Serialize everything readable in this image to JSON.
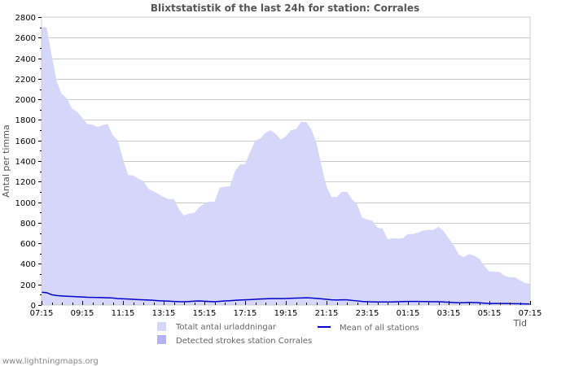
{
  "chart_data": {
    "type": "area",
    "title": "Blixtstatistik of the last 24h for station: Corrales",
    "xlabel": "Tid",
    "ylabel": "Antal per timma",
    "ylim": [
      0,
      2800
    ],
    "yticks": [
      0,
      200,
      400,
      600,
      800,
      1000,
      1200,
      1400,
      1600,
      1800,
      2000,
      2200,
      2400,
      2600,
      2800
    ],
    "xtick_labels": [
      "07:15",
      "09:15",
      "11:15",
      "13:15",
      "15:15",
      "17:15",
      "19:15",
      "21:15",
      "23:15",
      "01:15",
      "03:15",
      "05:15",
      "07:15"
    ],
    "grid": true,
    "legend_position": "bottom",
    "x_interval_minutes": 15,
    "series": [
      {
        "name": "Totalt antal urladdningar",
        "kind": "area",
        "color": "#d6d6fb",
        "values": [
          2700,
          2700,
          2430,
          2170,
          2050,
          2010,
          1910,
          1880,
          1820,
          1760,
          1755,
          1730,
          1750,
          1760,
          1650,
          1600,
          1420,
          1265,
          1260,
          1230,
          1205,
          1130,
          1105,
          1080,
          1050,
          1030,
          1030,
          930,
          870,
          890,
          895,
          950,
          990,
          1005,
          1005,
          1140,
          1150,
          1155,
          1300,
          1365,
          1370,
          1490,
          1600,
          1620,
          1675,
          1700,
          1665,
          1610,
          1640,
          1700,
          1710,
          1780,
          1780,
          1710,
          1580,
          1360,
          1150,
          1050,
          1050,
          1100,
          1100,
          1030,
          980,
          850,
          830,
          820,
          750,
          745,
          640,
          650,
          645,
          650,
          690,
          690,
          705,
          725,
          730,
          730,
          760,
          720,
          650,
          580,
          490,
          465,
          495,
          480,
          450,
          380,
          325,
          325,
          320,
          285,
          270,
          270,
          240,
          215,
          205
        ]
      },
      {
        "name": "Detected strokes station Corrales",
        "kind": "area",
        "color": "#b4b4f7",
        "values": [
          0,
          0,
          0,
          0,
          0,
          0,
          0,
          0,
          0,
          0,
          0,
          0,
          0,
          0,
          0,
          0,
          0,
          0,
          0,
          0,
          0,
          0,
          0,
          0,
          0,
          0,
          0,
          0,
          0,
          0,
          0,
          0,
          0,
          0,
          0,
          0,
          0,
          0,
          0,
          0,
          0,
          0,
          0,
          0,
          0,
          0,
          0,
          0,
          0,
          0,
          0,
          0,
          0,
          0,
          0,
          0,
          0,
          0,
          0,
          0,
          0,
          0,
          0,
          0,
          0,
          0,
          0,
          0,
          0,
          0,
          0,
          0,
          0,
          0,
          0,
          0,
          0,
          0,
          0,
          0,
          0,
          0,
          0,
          0,
          0,
          0,
          0,
          0,
          0,
          0,
          0,
          0,
          0,
          0,
          0,
          0,
          0
        ]
      },
      {
        "name": "Mean of all stations",
        "kind": "line",
        "color": "#0000cc",
        "values": [
          125,
          120,
          100,
          92,
          88,
          85,
          83,
          80,
          78,
          75,
          74,
          73,
          72,
          70,
          68,
          62,
          60,
          58,
          55,
          52,
          50,
          48,
          45,
          42,
          40,
          38,
          35,
          33,
          32,
          34,
          38,
          40,
          37,
          34,
          32,
          36,
          40,
          42,
          45,
          48,
          50,
          52,
          55,
          58,
          60,
          62,
          62,
          62,
          63,
          65,
          67,
          68,
          70,
          68,
          64,
          60,
          55,
          50,
          48,
          50,
          50,
          45,
          40,
          35,
          32,
          31,
          30,
          30,
          30,
          30,
          32,
          34,
          35,
          35,
          35,
          34,
          33,
          32,
          32,
          30,
          27,
          24,
          22,
          23,
          25,
          24,
          22,
          18,
          15,
          15,
          15,
          15,
          14,
          13,
          12,
          11,
          10
        ]
      }
    ]
  },
  "footer": {
    "source": "www.lightningmaps.org"
  }
}
